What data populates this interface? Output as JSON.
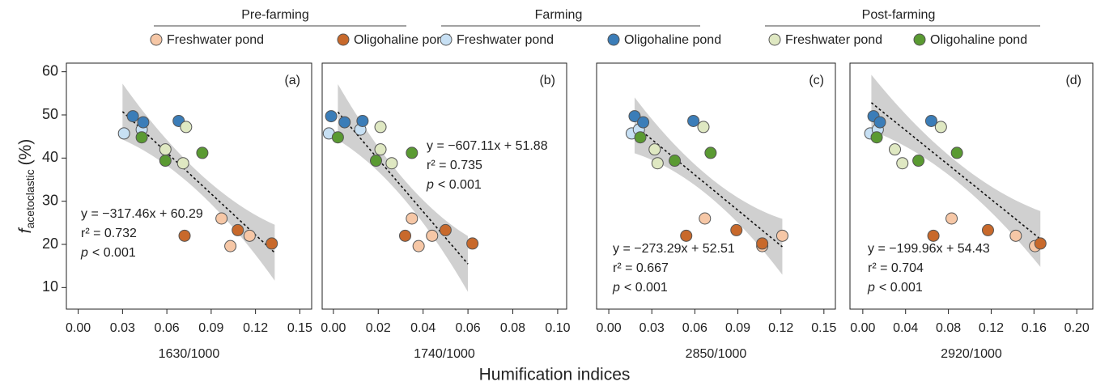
{
  "legend_groups": [
    {
      "title": "Pre-farming"
    },
    {
      "title": "Farming"
    },
    {
      "title": "Post-farming"
    }
  ],
  "y_label": {
    "symbol": "f",
    "subscript": "acetoclastic",
    "unit": "(%)"
  },
  "x_label": "Humification indices",
  "chart_data": [
    {
      "type": "scatter",
      "panel_label": "(a)",
      "x_label": "1630/1000",
      "xlim": [
        -0.008,
        0.158
      ],
      "ylim": [
        5,
        62
      ],
      "xticks": [
        {
          "value": 0,
          "label": "0.00"
        },
        {
          "value": 0.03,
          "label": "0.03"
        },
        {
          "value": 0.06,
          "label": "0.06"
        },
        {
          "value": 0.09,
          "label": "0.09"
        },
        {
          "value": 0.12,
          "label": "0.12"
        },
        {
          "value": 0.15,
          "label": "0.15"
        }
      ],
      "yticks": [
        10,
        20,
        30,
        40,
        50,
        60
      ],
      "series": [
        {
          "name": "Freshwater pond",
          "color": "#f6c7a6",
          "x": [
            0.097,
            0.103,
            0.116
          ],
          "values": [
            26.0,
            19.6,
            22.0
          ]
        },
        {
          "name": "Oligohaline pond",
          "color": "#c8692b",
          "x": [
            0.072,
            0.108,
            0.131
          ],
          "values": [
            22.0,
            23.3,
            20.2
          ]
        },
        {
          "name": "Freshwater pond",
          "color": "#c7e0f4",
          "x": [
            0.031,
            0.043
          ],
          "values": [
            45.7,
            46.6
          ]
        },
        {
          "name": "Oligohaline pond",
          "color": "#3b7db8",
          "x": [
            0.037,
            0.044,
            0.068
          ],
          "values": [
            49.7,
            48.3,
            48.6
          ]
        },
        {
          "name": "Freshwater pond",
          "color": "#dfe8c2",
          "x": [
            0.073,
            0.059,
            0.071
          ],
          "values": [
            47.2,
            42.0,
            38.8
          ]
        },
        {
          "name": "Oligohaline pond",
          "color": "#5a9a32",
          "x": [
            0.043,
            0.059,
            0.084
          ],
          "values": [
            44.8,
            39.4,
            41.2
          ]
        }
      ],
      "fit": {
        "x_range": [
          0.03,
          0.133
        ],
        "equation": "y = −317.46x + 60.29",
        "r2": "r² = 0.732",
        "p_symbol": "p",
        "p_value": "< 0.001"
      }
    },
    {
      "type": "scatter",
      "panel_label": "(b)",
      "x_label": "1740/1000",
      "xlim": [
        -0.005,
        0.104
      ],
      "ylim": [
        5,
        62
      ],
      "xticks": [
        {
          "value": 0,
          "label": "0.00"
        },
        {
          "value": 0.02,
          "label": "0.02"
        },
        {
          "value": 0.04,
          "label": "0.04"
        },
        {
          "value": 0.06,
          "label": "0.06"
        },
        {
          "value": 0.08,
          "label": "0.08"
        },
        {
          "value": 0.1,
          "label": "0.10"
        }
      ],
      "series": [
        {
          "x": [
            0.035,
            0.038,
            0.044
          ],
          "values": [
            26.0,
            19.6,
            22.0
          ]
        },
        {
          "x": [
            0.032,
            0.05,
            0.062
          ],
          "values": [
            22.0,
            23.3,
            20.2
          ]
        },
        {
          "x": [
            -0.002,
            0.012
          ],
          "values": [
            45.7,
            46.6
          ]
        },
        {
          "x": [
            -0.001,
            0.005,
            0.013
          ],
          "values": [
            49.7,
            48.3,
            48.6
          ]
        },
        {
          "x": [
            0.021,
            0.021,
            0.026
          ],
          "values": [
            47.2,
            42.0,
            38.8
          ]
        },
        {
          "x": [
            0.002,
            0.019,
            0.035
          ],
          "values": [
            44.8,
            39.4,
            41.2
          ]
        }
      ],
      "fit": {
        "x_range": [
          0.002,
          0.06
        ],
        "equation": "y = −607.11x + 51.88",
        "r2": "r² = 0.735",
        "p_symbol": "p",
        "p_value": "< 0.001"
      }
    },
    {
      "type": "scatter",
      "panel_label": "(c)",
      "x_label": "2850/1000",
      "xlim": [
        -0.0085,
        0.158
      ],
      "ylim": [
        5,
        62
      ],
      "xticks": [
        {
          "value": 0,
          "label": "0.00"
        },
        {
          "value": 0.03,
          "label": "0.03"
        },
        {
          "value": 0.06,
          "label": "0.06"
        },
        {
          "value": 0.09,
          "label": "0.09"
        },
        {
          "value": 0.12,
          "label": "0.12"
        },
        {
          "value": 0.15,
          "label": "0.15"
        }
      ],
      "series": [
        {
          "x": [
            0.067,
            0.107,
            0.121
          ],
          "values": [
            26.0,
            19.6,
            22.0
          ]
        },
        {
          "x": [
            0.054,
            0.089,
            0.107
          ],
          "values": [
            22.0,
            23.3,
            20.2
          ]
        },
        {
          "x": [
            0.016,
            0.021
          ],
          "values": [
            45.7,
            46.6
          ]
        },
        {
          "x": [
            0.018,
            0.024,
            0.059
          ],
          "values": [
            49.7,
            48.3,
            48.6
          ]
        },
        {
          "x": [
            0.066,
            0.032,
            0.034
          ],
          "values": [
            47.2,
            42.0,
            38.8
          ]
        },
        {
          "x": [
            0.022,
            0.046,
            0.071
          ],
          "values": [
            44.8,
            39.4,
            41.2
          ]
        }
      ],
      "fit": {
        "x_range": [
          0.018,
          0.121
        ],
        "equation": "y = −273.29x + 52.51",
        "r2": "r² = 0.667",
        "p_symbol": "p",
        "p_value": "< 0.001"
      }
    },
    {
      "type": "scatter",
      "panel_label": "(d)",
      "x_label": "2920/1000",
      "xlim": [
        -0.012,
        0.215
      ],
      "ylim": [
        5,
        62
      ],
      "xticks": [
        {
          "value": 0,
          "label": "0.00"
        },
        {
          "value": 0.04,
          "label": "0.04"
        },
        {
          "value": 0.08,
          "label": "0.08"
        },
        {
          "value": 0.12,
          "label": "0.12"
        },
        {
          "value": 0.16,
          "label": "0.16"
        },
        {
          "value": 0.2,
          "label": "0.20"
        }
      ],
      "series": [
        {
          "x": [
            0.083,
            0.161,
            0.143
          ],
          "values": [
            26.0,
            19.6,
            22.0
          ]
        },
        {
          "x": [
            0.066,
            0.117,
            0.166
          ],
          "values": [
            22.0,
            23.3,
            20.2
          ]
        },
        {
          "x": [
            0.007,
            0.014
          ],
          "values": [
            45.7,
            46.6
          ]
        },
        {
          "x": [
            0.01,
            0.016,
            0.064
          ],
          "values": [
            49.7,
            48.3,
            48.6
          ]
        },
        {
          "x": [
            0.073,
            0.03,
            0.037
          ],
          "values": [
            47.2,
            42.0,
            38.8
          ]
        },
        {
          "x": [
            0.013,
            0.052,
            0.088
          ],
          "values": [
            44.8,
            39.4,
            41.2
          ]
        }
      ],
      "fit": {
        "x_range": [
          0.008,
          0.166
        ],
        "equation": "y = −199.96x + 54.43",
        "r2": "r² = 0.704",
        "p_symbol": "p",
        "p_value": "< 0.001"
      }
    }
  ]
}
